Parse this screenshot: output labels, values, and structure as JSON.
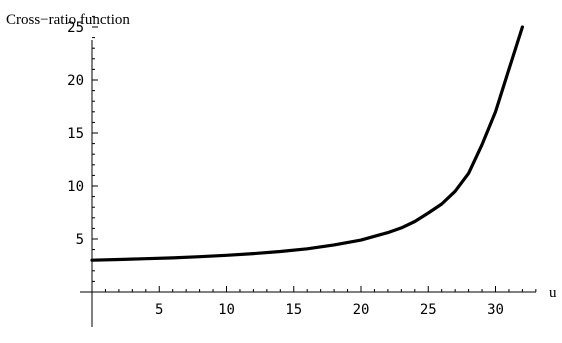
{
  "chart_data": {
    "type": "line",
    "ylabel": "Cross−ratio function",
    "xlabel": "u",
    "xlim": [
      -0.2,
      33
    ],
    "ylim": [
      0,
      26.5
    ],
    "x_major_ticks": [
      5,
      10,
      15,
      20,
      25,
      30
    ],
    "y_major_ticks": [
      5,
      10,
      15,
      20,
      25
    ],
    "x_tick_labels": [
      "5",
      "10",
      "15",
      "20",
      "25",
      "30"
    ],
    "y_tick_labels": [
      "5",
      "10",
      "15",
      "20",
      "25"
    ],
    "grid": false,
    "series": [
      {
        "x": [
          0,
          2,
          4,
          6,
          8,
          10,
          12,
          14,
          16,
          18,
          20,
          21,
          22,
          23,
          24,
          25,
          26,
          27,
          28,
          29,
          30,
          31,
          32
        ],
        "y": [
          3.0,
          3.07,
          3.14,
          3.22,
          3.33,
          3.46,
          3.62,
          3.82,
          4.08,
          4.44,
          4.9,
          5.25,
          5.6,
          6.05,
          6.65,
          7.45,
          8.3,
          9.5,
          11.2,
          13.9,
          17.0,
          21.0,
          25.0
        ]
      }
    ]
  }
}
